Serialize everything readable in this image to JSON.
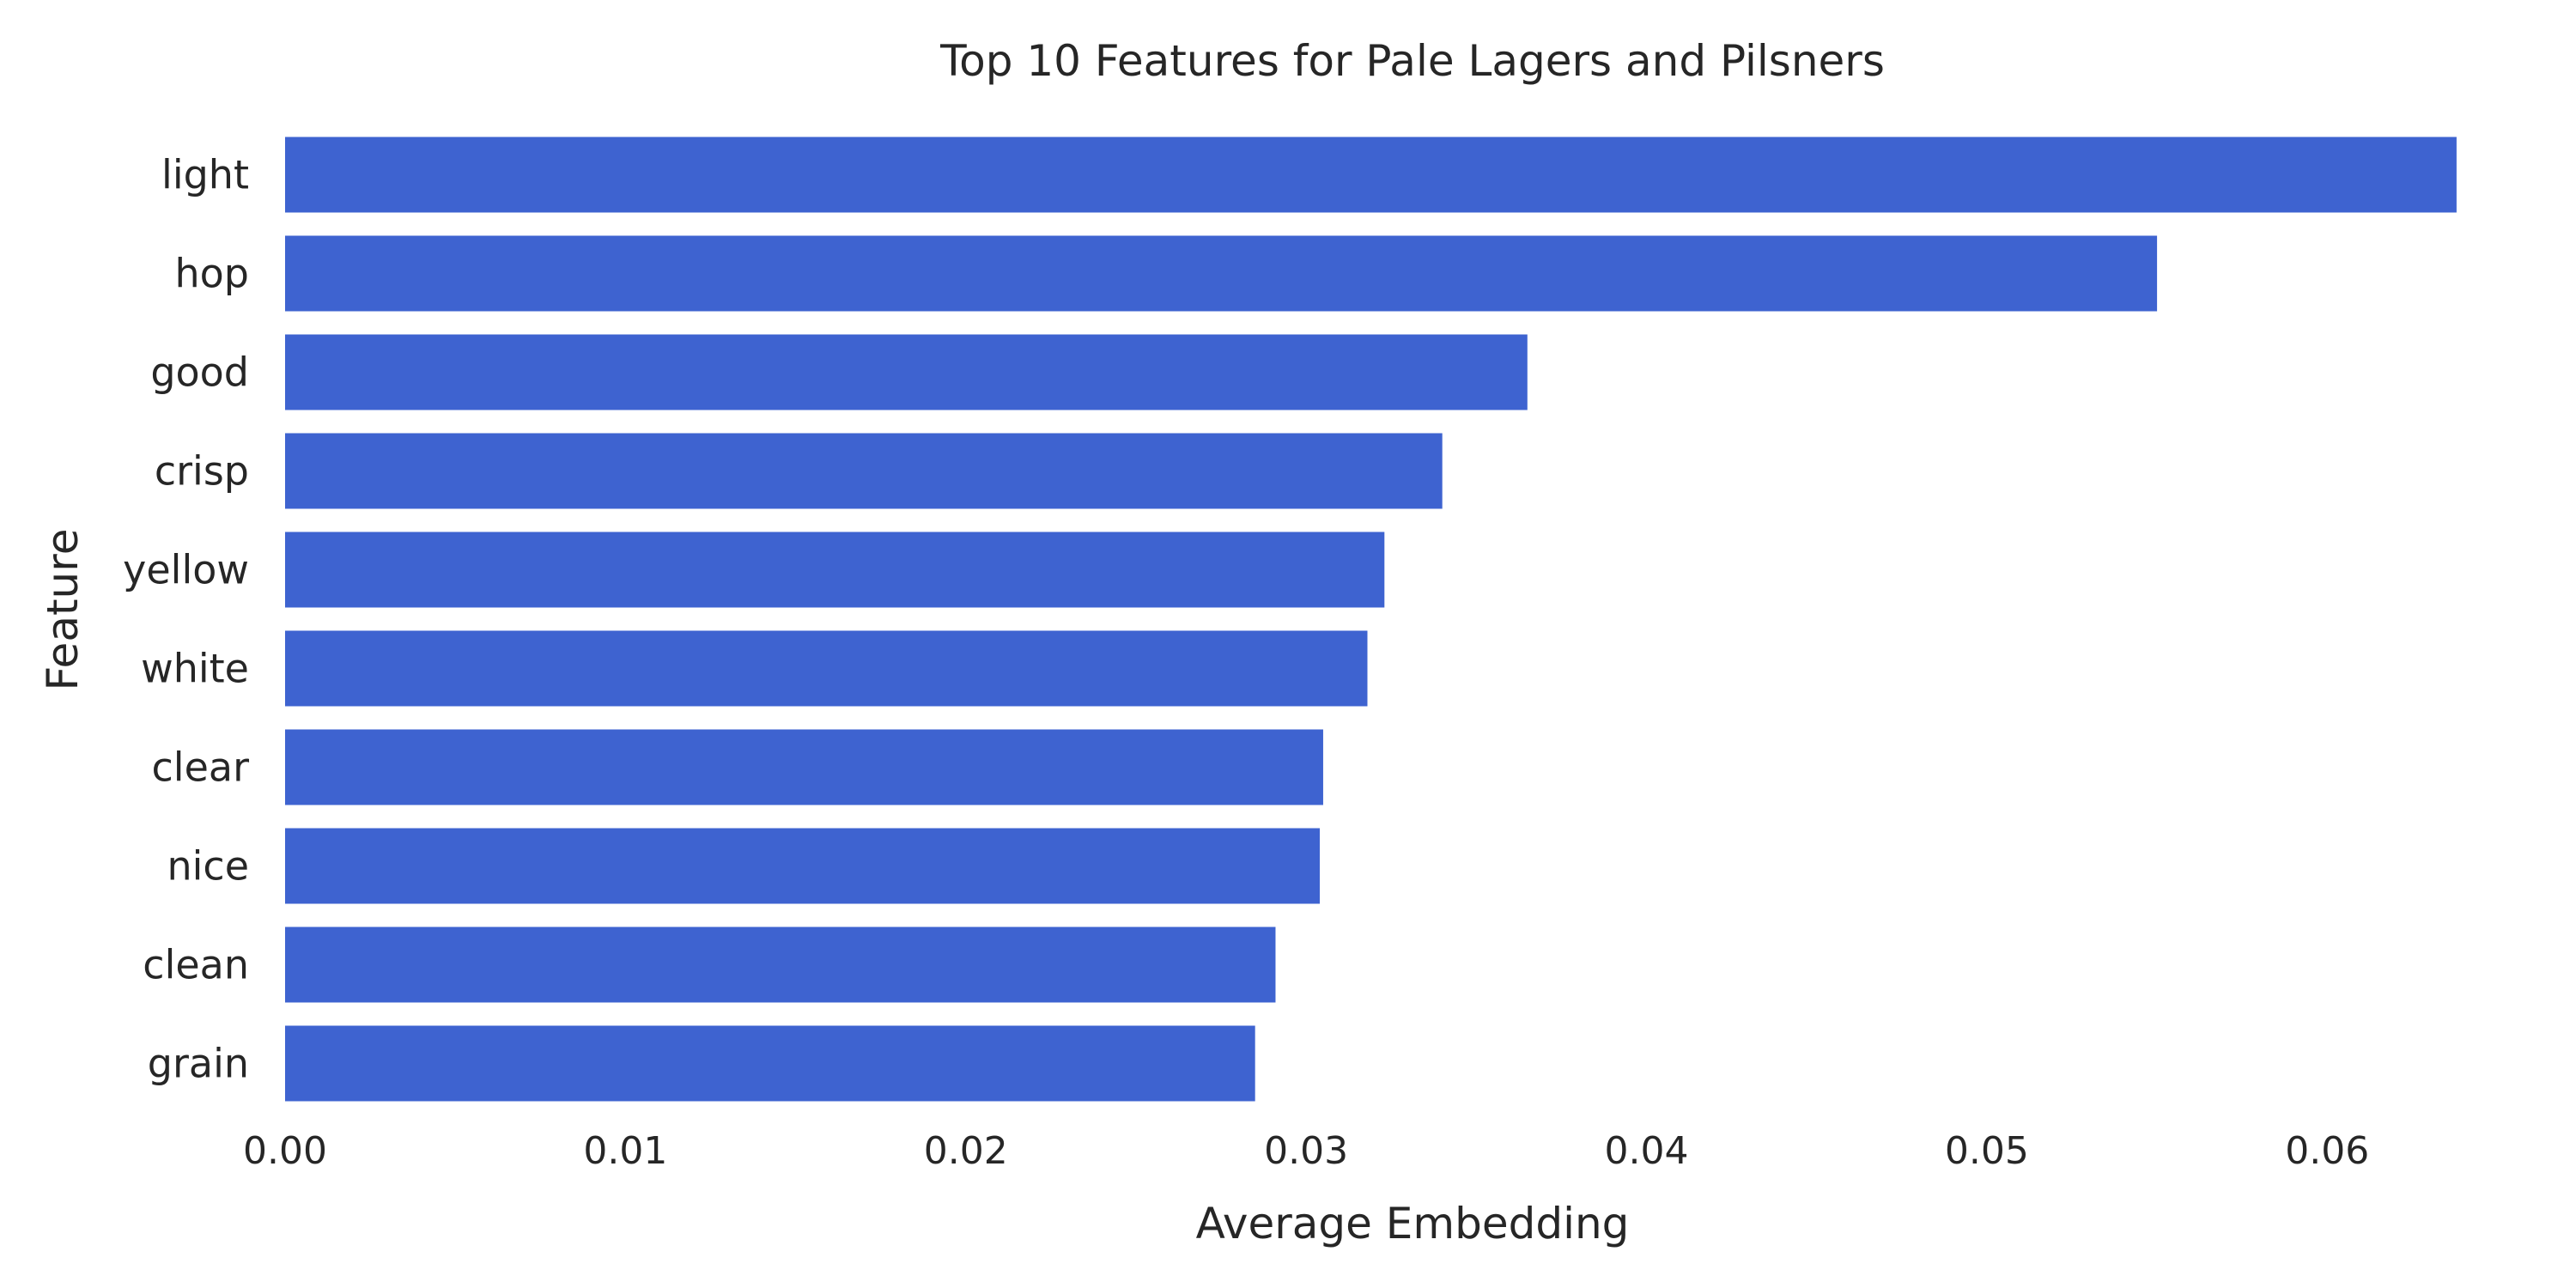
{
  "chart_data": {
    "type": "bar",
    "orientation": "horizontal",
    "title": "Top 10 Features for Pale Lagers and Pilsners",
    "xlabel": "Average Embedding",
    "ylabel": "Feature",
    "categories": [
      "light",
      "hop",
      "good",
      "crisp",
      "yellow",
      "white",
      "clear",
      "nice",
      "clean",
      "grain"
    ],
    "values": [
      0.0638,
      0.055,
      0.0365,
      0.034,
      0.0323,
      0.0318,
      0.0305,
      0.0304,
      0.0291,
      0.0285
    ],
    "xlim": [
      0,
      0.0663
    ],
    "xticks": [
      "0.00",
      "0.01",
      "0.02",
      "0.03",
      "0.04",
      "0.05",
      "0.06"
    ],
    "grid": false,
    "legend": "none",
    "bar_color": "#3e63d0"
  }
}
